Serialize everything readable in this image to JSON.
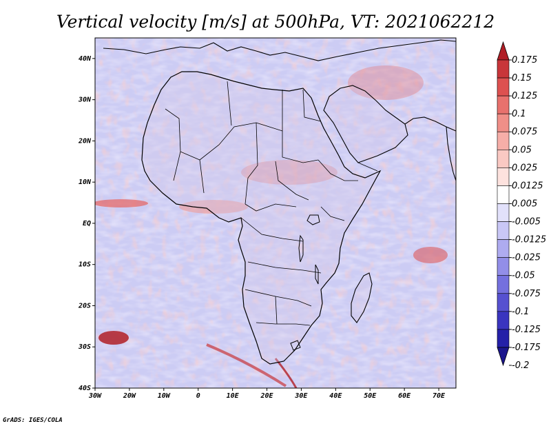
{
  "chart_data": {
    "type": "heatmap",
    "title": "Vertical velocity [m/s] at 500hPa, VT: 2021062212",
    "xlabel": "",
    "ylabel": "",
    "x_ticks": [
      {
        "value": -30,
        "label": "30W"
      },
      {
        "value": -20,
        "label": "20W"
      },
      {
        "value": -10,
        "label": "10W"
      },
      {
        "value": 0,
        "label": "0"
      },
      {
        "value": 10,
        "label": "10E"
      },
      {
        "value": 20,
        "label": "20E"
      },
      {
        "value": 30,
        "label": "30E"
      },
      {
        "value": 40,
        "label": "40E"
      },
      {
        "value": 50,
        "label": "50E"
      },
      {
        "value": 60,
        "label": "60E"
      },
      {
        "value": 70,
        "label": "70E"
      }
    ],
    "y_ticks": [
      {
        "value": -40,
        "label": "40S"
      },
      {
        "value": -30,
        "label": "30S"
      },
      {
        "value": -20,
        "label": "20S"
      },
      {
        "value": -10,
        "label": "10S"
      },
      {
        "value": 0,
        "label": "EQ"
      },
      {
        "value": 10,
        "label": "10N"
      },
      {
        "value": 20,
        "label": "20N"
      },
      {
        "value": 30,
        "label": "30N"
      },
      {
        "value": 40,
        "label": "40N"
      }
    ],
    "xlim": [
      -30,
      75
    ],
    "ylim": [
      -40,
      45
    ],
    "colorbar": {
      "labels": [
        "0.175",
        "0.15",
        "0.125",
        "0.1",
        "0.075",
        "0.05",
        "0.025",
        "0.0125",
        "0.005",
        "-0.005",
        "-0.0125",
        "-0.025",
        "-0.05",
        "-0.075",
        "-0.1",
        "-0.125",
        "-0.175",
        "-0.2"
      ],
      "colors": [
        "#b01e26",
        "#c8363a",
        "#dd5150",
        "#e8716d",
        "#f08f88",
        "#f6aea8",
        "#fac9c3",
        "#fde2de",
        "#ffffff",
        "#e2e1fb",
        "#c9c7f6",
        "#aeabf0",
        "#928ee8",
        "#7470de",
        "#5651d0",
        "#3a35bf",
        "#2420a8",
        "#1b168d"
      ]
    },
    "features": [
      {
        "name": "Madagascar",
        "kind": "island"
      },
      {
        "name": "Lake Victoria",
        "kind": "lake"
      },
      {
        "name": "Lake Tanganyika",
        "kind": "lake"
      },
      {
        "name": "Lake Malawi",
        "kind": "lake"
      }
    ]
  },
  "credit": "GrADS: IGES/COLA",
  "colors": {
    "sea_background": "#ccccf4",
    "land_tint": "#d5c8e8",
    "coast": "#000000"
  }
}
